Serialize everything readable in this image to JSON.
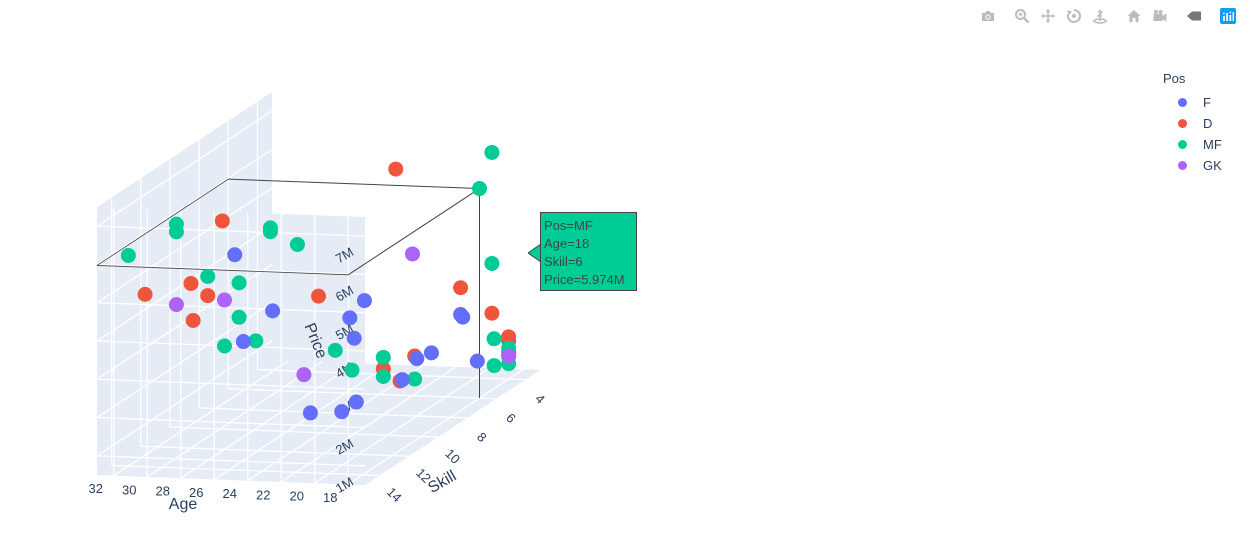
{
  "modebar": {
    "buttons": [
      {
        "name": "download-plot-button",
        "icon": "camera-icon"
      },
      {
        "name": "zoom-button",
        "icon": "zoom-icon"
      },
      {
        "name": "pan-button",
        "icon": "pan-icon"
      },
      {
        "name": "orbit-rotation-button",
        "icon": "orbit-icon"
      },
      {
        "name": "turntable-rotation-button",
        "icon": "turntable-icon"
      },
      {
        "name": "reset-camera-default-button",
        "icon": "home-icon"
      },
      {
        "name": "reset-camera-last-save-button",
        "icon": "camera-video-icon"
      },
      {
        "name": "toggle-spike-lines-button",
        "icon": "spike-icon"
      },
      {
        "name": "plotly-logo-button",
        "icon": "plotly-logo-icon"
      }
    ]
  },
  "legend": {
    "title": "Pos",
    "items": [
      {
        "label": "F",
        "color": "#636efa"
      },
      {
        "label": "D",
        "color": "#EF553B"
      },
      {
        "label": "MF",
        "color": "#00cc96"
      },
      {
        "label": "GK",
        "color": "#ab63fa"
      }
    ]
  },
  "hover": {
    "lines": [
      "Pos=MF",
      "Age=18",
      "Skill=6",
      "Price=5.974M"
    ],
    "color": "#00cc96"
  },
  "chart_data": {
    "type": "scatter3d",
    "axes": {
      "x": {
        "label": "Skill",
        "ticks": [
          "4",
          "6",
          "8",
          "10",
          "12",
          "14"
        ],
        "range": [
          3,
          15
        ]
      },
      "y": {
        "label": "Age",
        "ticks": [
          "18",
          "20",
          "22",
          "24",
          "26",
          "28",
          "30",
          "32"
        ],
        "range": [
          17,
          33
        ]
      },
      "z": {
        "label": "Price",
        "ticks": [
          "1M",
          "2M",
          "3M",
          "4M",
          "5M",
          "6M",
          "7M"
        ],
        "range": [
          0.5,
          7.5
        ]
      }
    },
    "grid": true,
    "legend_position": "top-right",
    "series": [
      {
        "name": "F",
        "color": "#636efa",
        "points": [
          {
            "skill": 13,
            "age": 26,
            "price": 3.6
          },
          {
            "skill": 13,
            "age": 22,
            "price": 1.8
          },
          {
            "skill": 12,
            "age": 21,
            "price": 1.6
          },
          {
            "skill": 11,
            "age": 21,
            "price": 1.6
          },
          {
            "skill": 11,
            "age": 26,
            "price": 3.9
          },
          {
            "skill": 10,
            "age": 22,
            "price": 3.0
          },
          {
            "skill": 9,
            "age": 20,
            "price": 1.7
          },
          {
            "skill": 8,
            "age": 20,
            "price": 2.0
          },
          {
            "skill": 8,
            "age": 24,
            "price": 3.0
          },
          {
            "skill": 7,
            "age": 24,
            "price": 3.2
          },
          {
            "skill": 7,
            "age": 20,
            "price": 1.9
          },
          {
            "skill": 6,
            "age": 19,
            "price": 2.6
          },
          {
            "skill": 5,
            "age": 20,
            "price": 2.4
          },
          {
            "skill": 5,
            "age": 19,
            "price": 1.2
          },
          {
            "skill": 4,
            "age": 18,
            "price": 1.5
          },
          {
            "skill": 9,
            "age": 30,
            "price": 4.8
          }
        ]
      },
      {
        "name": "D",
        "color": "#EF553B",
        "points": [
          {
            "skill": 14,
            "age": 31,
            "price": 5.0
          },
          {
            "skill": 13,
            "age": 29,
            "price": 4.1
          },
          {
            "skill": 12,
            "age": 29,
            "price": 4.5
          },
          {
            "skill": 12,
            "age": 30,
            "price": 4.8
          },
          {
            "skill": 11,
            "age": 29,
            "price": 6.2
          },
          {
            "skill": 9,
            "age": 25,
            "price": 3.8
          },
          {
            "skill": 8,
            "age": 22,
            "price": 1.7
          },
          {
            "skill": 8,
            "age": 21,
            "price": 1.4
          },
          {
            "skill": 7,
            "age": 21,
            "price": 1.8
          },
          {
            "skill": 6,
            "age": 23,
            "price": 6.4
          },
          {
            "skill": 5,
            "age": 20,
            "price": 3.1
          },
          {
            "skill": 4,
            "age": 19,
            "price": 2.2
          },
          {
            "skill": 4,
            "age": 18,
            "price": 1.6
          },
          {
            "skill": 4,
            "age": 18,
            "price": 1.2
          },
          {
            "skill": 4,
            "age": 18,
            "price": 1.1
          }
        ]
      },
      {
        "name": "MF",
        "color": "#00cc96",
        "points": [
          {
            "skill": 14,
            "age": 32,
            "price": 6.0
          },
          {
            "skill": 13,
            "age": 30,
            "price": 6.6
          },
          {
            "skill": 13,
            "age": 30,
            "price": 6.4
          },
          {
            "skill": 12,
            "age": 29,
            "price": 5.0
          },
          {
            "skill": 12,
            "age": 28,
            "price": 3.2
          },
          {
            "skill": 11,
            "age": 27,
            "price": 3.1
          },
          {
            "skill": 11,
            "age": 28,
            "price": 3.7
          },
          {
            "skill": 11,
            "age": 28,
            "price": 4.6
          },
          {
            "skill": 10,
            "age": 27,
            "price": 5.8
          },
          {
            "skill": 10,
            "age": 27,
            "price": 5.7
          },
          {
            "skill": 9,
            "age": 24,
            "price": 2.4
          },
          {
            "skill": 9,
            "age": 23,
            "price": 1.9
          },
          {
            "skill": 8,
            "age": 22,
            "price": 2.0
          },
          {
            "skill": 8,
            "age": 22,
            "price": 1.5
          },
          {
            "skill": 7,
            "age": 21,
            "price": 1.2
          },
          {
            "skill": 7,
            "age": 28,
            "price": 4.6
          },
          {
            "skill": 6,
            "age": 18,
            "price": 5.974
          },
          {
            "skill": 4,
            "age": 19,
            "price": 6.4
          },
          {
            "skill": 5,
            "age": 18,
            "price": 1.8
          },
          {
            "skill": 4,
            "age": 18,
            "price": 1.3
          },
          {
            "skill": 4,
            "age": 18,
            "price": 0.9
          },
          {
            "skill": 4,
            "age": 19,
            "price": 3.5
          },
          {
            "skill": 5,
            "age": 18,
            "price": 1.1
          }
        ]
      },
      {
        "name": "GK",
        "color": "#ab63fa",
        "points": [
          {
            "skill": 13,
            "age": 30,
            "price": 4.5
          },
          {
            "skill": 12,
            "age": 28,
            "price": 4.4
          },
          {
            "skill": 10,
            "age": 25,
            "price": 2.0
          },
          {
            "skill": 6,
            "age": 22,
            "price": 4.2
          },
          {
            "skill": 4,
            "age": 18,
            "price": 1.1
          }
        ]
      }
    ]
  }
}
